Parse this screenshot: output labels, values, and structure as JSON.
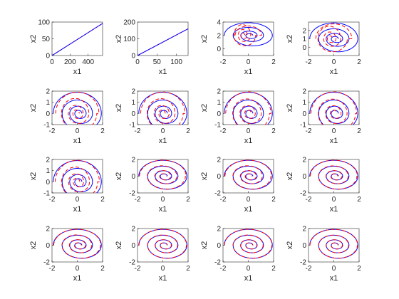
{
  "figure": {
    "background": "#ffffff",
    "colors": {
      "solid_series": "#0000ff",
      "dashed_series": "#ff0000",
      "axes": "#262626"
    }
  },
  "chart_data": [
    {
      "type": "line",
      "xlabel": "x1",
      "ylabel": "x2",
      "xlim": [
        0,
        560
      ],
      "ylim": [
        0,
        100
      ],
      "xticks": [
        "0",
        "200",
        "400"
      ],
      "yticks": [
        "0",
        "50",
        "100"
      ],
      "grid": false,
      "curve": {
        "kind": "ramp",
        "x": [
          0,
          560
        ],
        "y": [
          0,
          96
        ]
      }
    },
    {
      "type": "line",
      "xlabel": "x1",
      "ylabel": "x2",
      "xlim": [
        0,
        130
      ],
      "ylim": [
        0,
        200
      ],
      "xticks": [
        "0",
        "50",
        "100"
      ],
      "yticks": [
        "0",
        "100",
        "200"
      ],
      "grid": false,
      "curve": {
        "kind": "ramp",
        "x": [
          0,
          130
        ],
        "y": [
          0,
          160
        ]
      }
    },
    {
      "type": "line",
      "xlabel": "x1",
      "ylabel": "x2",
      "xlim": [
        -2,
        2
      ],
      "ylim": [
        -1,
        4
      ],
      "xticks": [
        "-2",
        "0",
        "2"
      ],
      "yticks": [
        "0",
        "2",
        "4"
      ],
      "grid": false,
      "curve": {
        "kind": "spiral",
        "outer_radius": 1.9,
        "outer_center_y": 2.0,
        "dash_stretch": 1.35,
        "dash_scale": 0.55
      }
    },
    {
      "type": "line",
      "xlabel": "x1",
      "ylabel": "x2",
      "xlim": [
        -2,
        2
      ],
      "ylim": [
        -1,
        3
      ],
      "xticks": [
        "-2",
        "0",
        "2"
      ],
      "yticks": [
        "0",
        "1",
        "2"
      ],
      "grid": false,
      "curve": {
        "kind": "spiral",
        "outer_radius": 1.9,
        "outer_center_y": 1.0,
        "dash_stretch": 1.25,
        "dash_scale": 0.75
      }
    },
    {
      "type": "line",
      "xlabel": "x1",
      "ylabel": "x2",
      "xlim": [
        -2,
        2
      ],
      "ylim": [
        -1,
        2
      ],
      "xticks": [
        "-2",
        "0",
        "2"
      ],
      "yticks": [
        "-1",
        "0",
        "1",
        "2"
      ],
      "grid": false,
      "curve": {
        "kind": "spiral",
        "outer_radius": 1.9,
        "outer_center_y": 0.0,
        "dash_stretch": 1.12,
        "dash_scale": 0.9
      }
    },
    {
      "type": "line",
      "xlabel": "x1",
      "ylabel": "x2",
      "xlim": [
        -2,
        2
      ],
      "ylim": [
        -1,
        2
      ],
      "xticks": [
        "-2",
        "0",
        "2"
      ],
      "yticks": [
        "-1",
        "0",
        "1",
        "2"
      ],
      "grid": false,
      "curve": {
        "kind": "spiral",
        "outer_radius": 1.9,
        "outer_center_y": 0.0,
        "dash_stretch": 1.1,
        "dash_scale": 0.92
      }
    },
    {
      "type": "line",
      "xlabel": "x1",
      "ylabel": "x2",
      "xlim": [
        -2,
        2
      ],
      "ylim": [
        -1,
        2
      ],
      "xticks": [
        "-2",
        "0",
        "2"
      ],
      "yticks": [
        "-1",
        "0",
        "1",
        "2"
      ],
      "grid": false,
      "curve": {
        "kind": "spiral",
        "outer_radius": 1.9,
        "outer_center_y": 0.0,
        "dash_stretch": 1.08,
        "dash_scale": 0.94
      }
    },
    {
      "type": "line",
      "xlabel": "x1",
      "ylabel": "x2",
      "xlim": [
        -2,
        2
      ],
      "ylim": [
        -1,
        2
      ],
      "xticks": [
        "-2",
        "0",
        "2"
      ],
      "yticks": [
        "-1",
        "0",
        "1",
        "2"
      ],
      "grid": false,
      "curve": {
        "kind": "spiral",
        "outer_radius": 1.9,
        "outer_center_y": 0.0,
        "dash_stretch": 1.07,
        "dash_scale": 0.95
      }
    },
    {
      "type": "line",
      "xlabel": "x1",
      "ylabel": "x2",
      "xlim": [
        -2,
        2
      ],
      "ylim": [
        -1,
        2
      ],
      "xticks": [
        "-2",
        "0",
        "2"
      ],
      "yticks": [
        "-1",
        "0",
        "1",
        "2"
      ],
      "grid": false,
      "curve": {
        "kind": "spiral",
        "outer_radius": 1.9,
        "outer_center_y": 0.0,
        "dash_stretch": 1.1,
        "dash_scale": 0.92
      }
    },
    {
      "type": "line",
      "xlabel": "x1",
      "ylabel": "x2",
      "xlim": [
        -2,
        2
      ],
      "ylim": [
        -2,
        2
      ],
      "xticks": [
        "-2",
        "0",
        "2"
      ],
      "yticks": [
        "-2",
        "0",
        "2"
      ],
      "grid": false,
      "curve": {
        "kind": "spiral",
        "outer_radius": 1.9,
        "outer_center_y": 0.0,
        "dash_stretch": 1.04,
        "dash_scale": 0.97
      }
    },
    {
      "type": "line",
      "xlabel": "x1",
      "ylabel": "x2",
      "xlim": [
        -2,
        2
      ],
      "ylim": [
        -2,
        2
      ],
      "xticks": [
        "-2",
        "0",
        "2"
      ],
      "yticks": [
        "-2",
        "0",
        "2"
      ],
      "grid": false,
      "curve": {
        "kind": "spiral",
        "outer_radius": 1.9,
        "outer_center_y": 0.0,
        "dash_stretch": 1.04,
        "dash_scale": 0.97
      }
    },
    {
      "type": "line",
      "xlabel": "x1",
      "ylabel": "x2",
      "xlim": [
        -2,
        2
      ],
      "ylim": [
        -2,
        2
      ],
      "xticks": [
        "-2",
        "0",
        "2"
      ],
      "yticks": [
        "-2",
        "0",
        "2"
      ],
      "grid": false,
      "curve": {
        "kind": "spiral",
        "outer_radius": 1.9,
        "outer_center_y": 0.0,
        "dash_stretch": 1.03,
        "dash_scale": 0.98
      }
    },
    {
      "type": "line",
      "xlabel": "x1",
      "ylabel": "x2",
      "xlim": [
        -2,
        2
      ],
      "ylim": [
        -2,
        2
      ],
      "xticks": [
        "-2",
        "0",
        "2"
      ],
      "yticks": [
        "-2",
        "0",
        "2"
      ],
      "grid": false,
      "curve": {
        "kind": "spiral",
        "outer_radius": 1.9,
        "outer_center_y": 0.0,
        "dash_stretch": 1.03,
        "dash_scale": 0.98
      }
    },
    {
      "type": "line",
      "xlabel": "x1",
      "ylabel": "x2",
      "xlim": [
        -2,
        2
      ],
      "ylim": [
        -2,
        2
      ],
      "xticks": [
        "-2",
        "0",
        "2"
      ],
      "yticks": [
        "-2",
        "0",
        "2"
      ],
      "grid": false,
      "curve": {
        "kind": "spiral",
        "outer_radius": 1.9,
        "outer_center_y": 0.0,
        "dash_stretch": 1.02,
        "dash_scale": 0.99
      }
    },
    {
      "type": "line",
      "xlabel": "x1",
      "ylabel": "x2",
      "xlim": [
        -2,
        2
      ],
      "ylim": [
        -2,
        2
      ],
      "xticks": [
        "-2",
        "0",
        "2"
      ],
      "yticks": [
        "-2",
        "0",
        "2"
      ],
      "grid": false,
      "curve": {
        "kind": "spiral",
        "outer_radius": 1.9,
        "outer_center_y": 0.0,
        "dash_stretch": 1.02,
        "dash_scale": 0.99
      }
    },
    {
      "type": "line",
      "xlabel": "x1",
      "ylabel": "x2",
      "xlim": [
        -2,
        2
      ],
      "ylim": [
        -2,
        2
      ],
      "xticks": [
        "-2",
        "0",
        "2"
      ],
      "yticks": [
        "-2",
        "0",
        "2"
      ],
      "grid": false,
      "curve": {
        "kind": "spiral",
        "outer_radius": 1.9,
        "outer_center_y": 0.0,
        "dash_stretch": 1.01,
        "dash_scale": 0.99
      }
    }
  ]
}
